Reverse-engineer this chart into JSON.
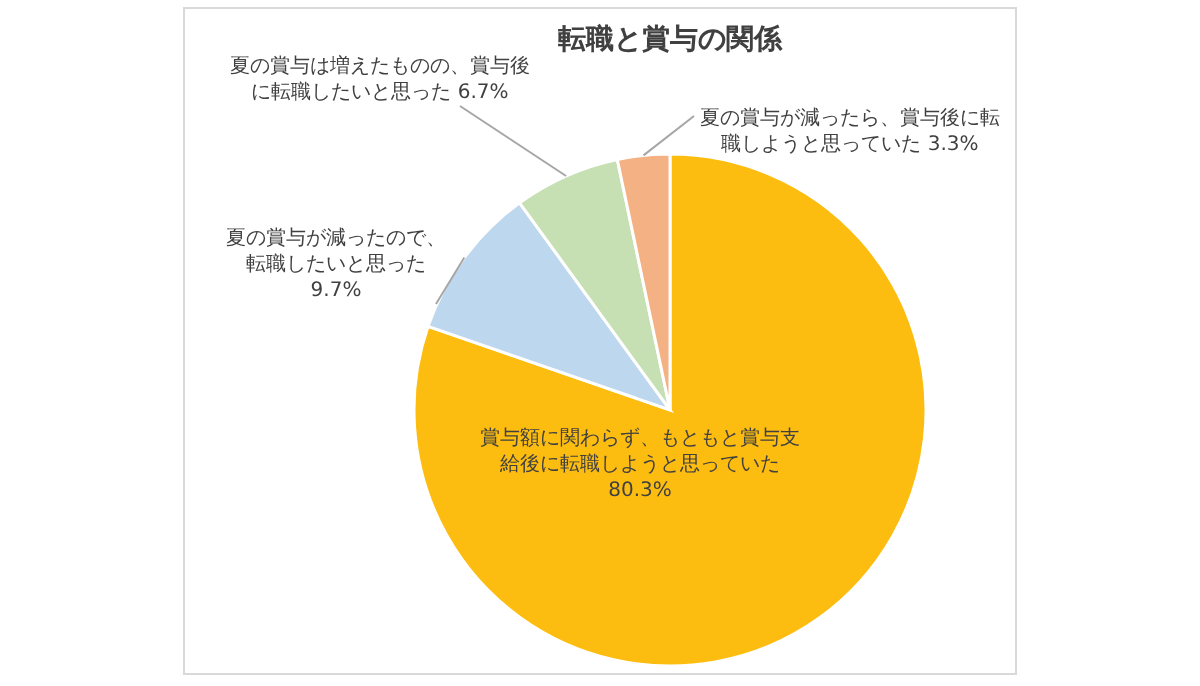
{
  "chart_data": {
    "type": "pie",
    "title": "転職と賞与の関係",
    "categories": [
      "賞与額に関わらず、もともと賞与支給後に転職しようと思っていた",
      "夏の賞与が減ったので、転職したいと思った",
      "夏の賞与は増えたものの、賞与後に転職したいと思った",
      "夏の賞与が減ったら、賞与後に転職しようと思っていた"
    ],
    "values": [
      80.3,
      9.7,
      6.7,
      3.3
    ],
    "colors": [
      "#fdbd10",
      "#bdd7ee",
      "#c6e0b4",
      "#f4b183"
    ],
    "value_labels": [
      "80.3%",
      "9.7%",
      "6.7%",
      "3.3%"
    ]
  }
}
